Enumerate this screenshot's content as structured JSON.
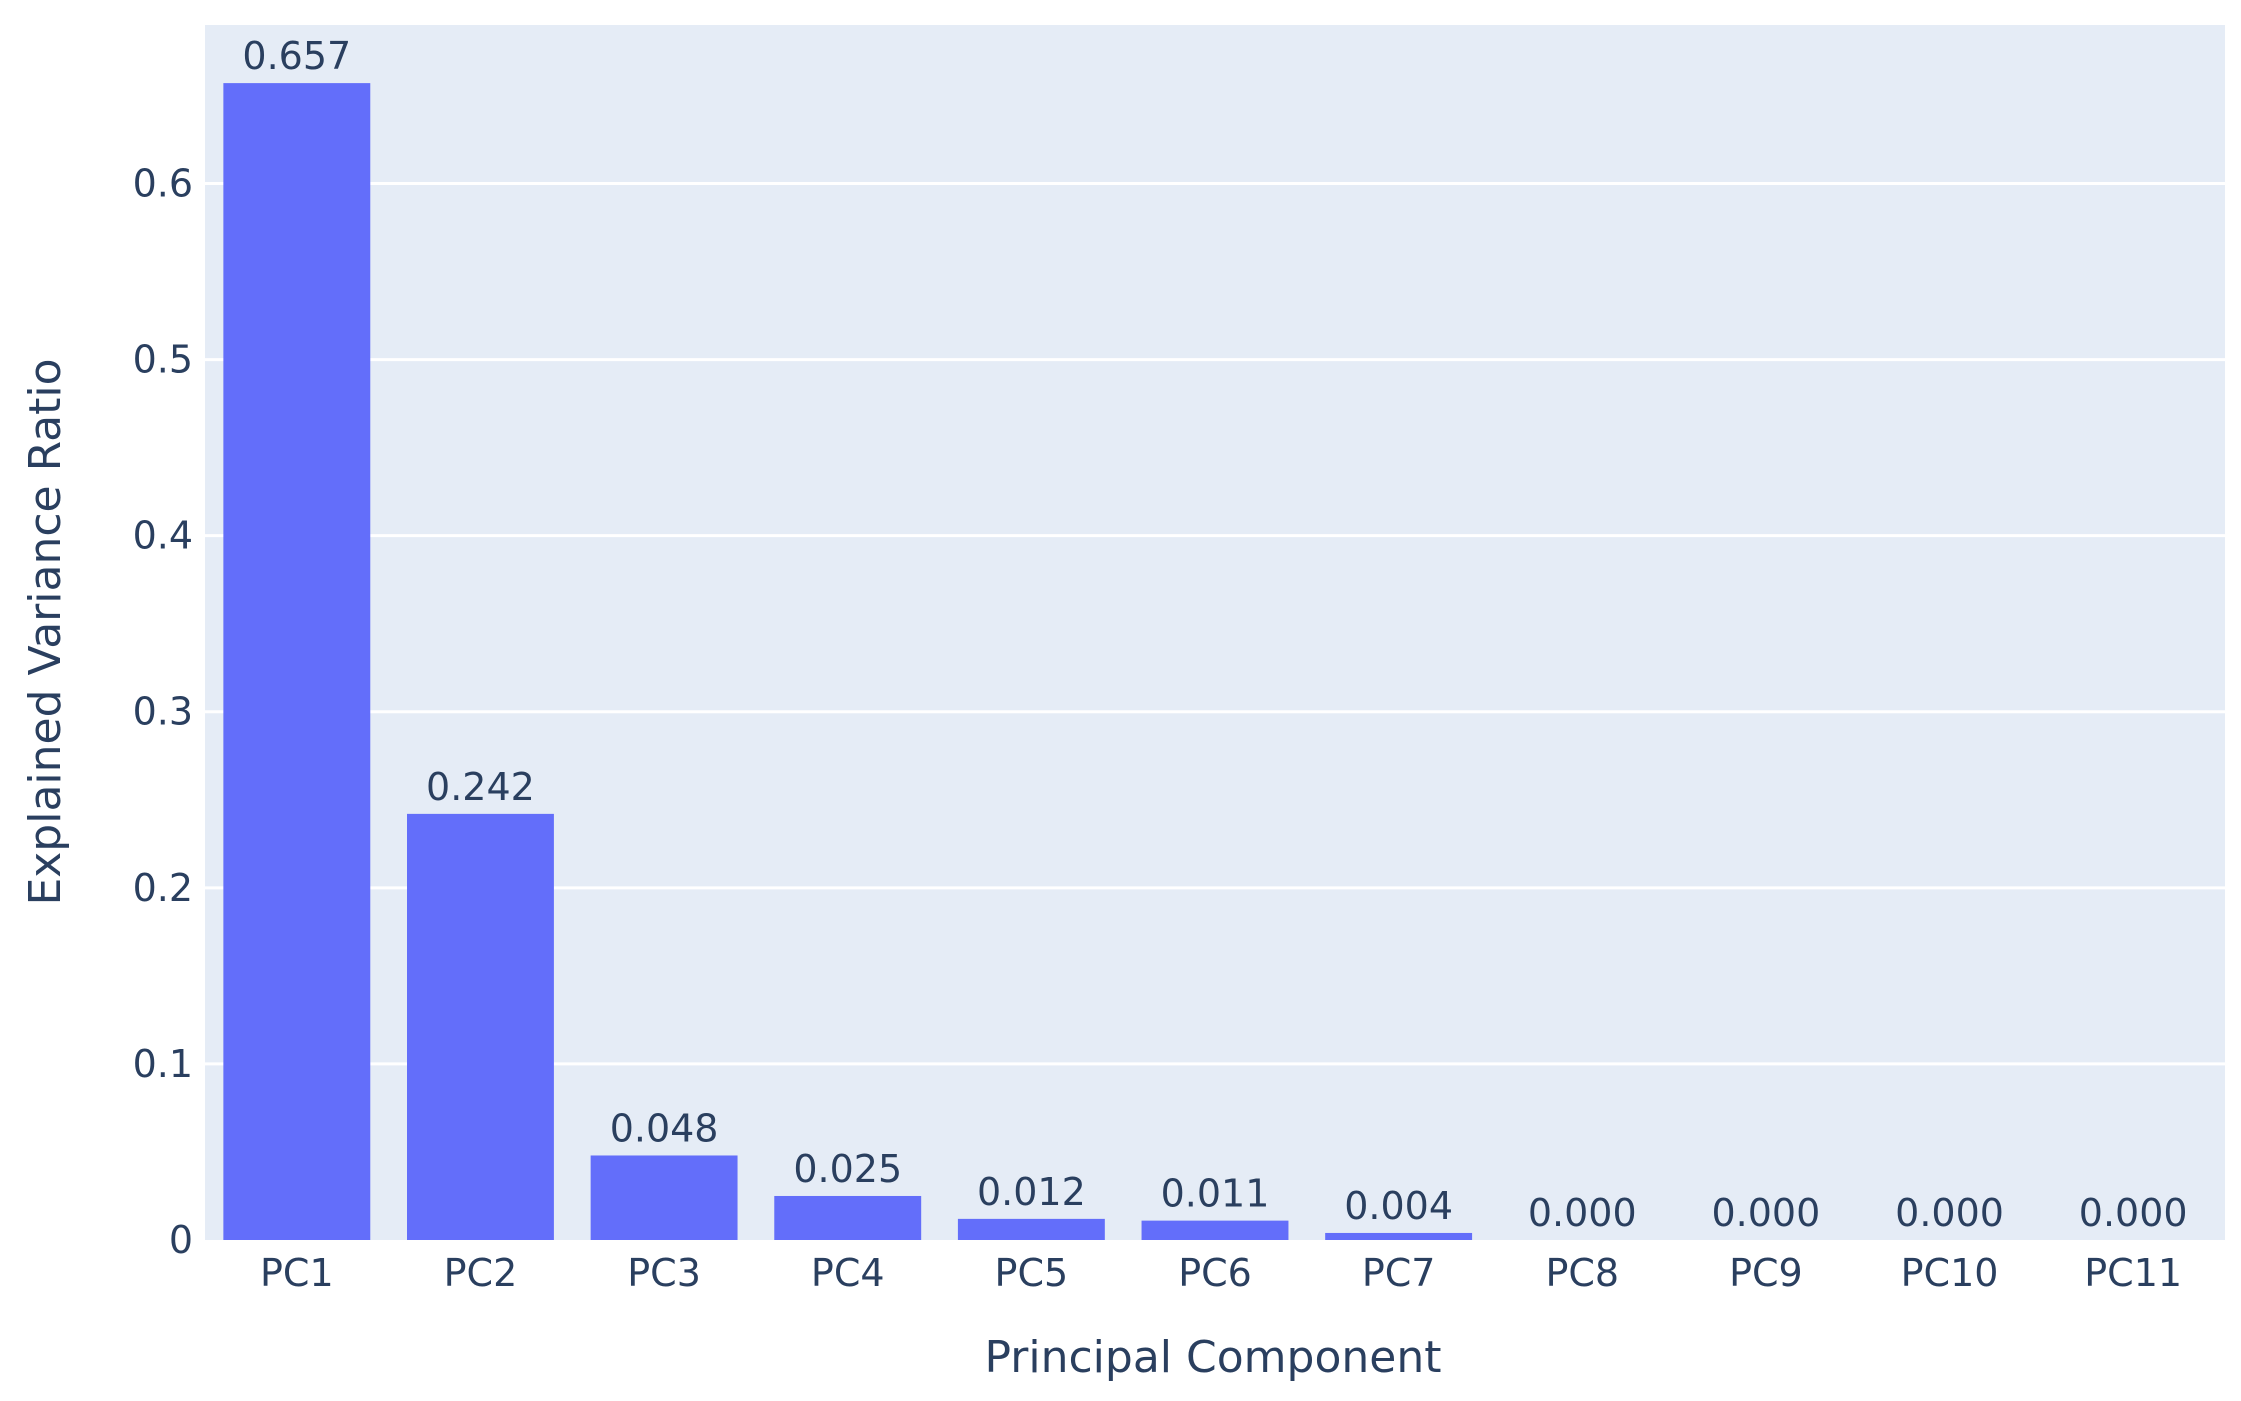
{
  "chart_data": {
    "type": "bar",
    "title": "",
    "xlabel": "Principal Component",
    "ylabel": "Explained Variance Ratio",
    "categories": [
      "PC1",
      "PC2",
      "PC3",
      "PC4",
      "PC5",
      "PC6",
      "PC7",
      "PC8",
      "PC9",
      "PC10",
      "PC11"
    ],
    "values": [
      0.657,
      0.242,
      0.048,
      0.025,
      0.012,
      0.011,
      0.004,
      0.0,
      0.0,
      0.0,
      0.0
    ],
    "value_labels": [
      "0.657",
      "0.242",
      "0.048",
      "0.025",
      "0.012",
      "0.011",
      "0.004",
      "0.000",
      "0.000",
      "0.000",
      "0.000"
    ],
    "yticks": [
      0,
      0.1,
      0.2,
      0.3,
      0.4,
      0.5,
      0.6
    ],
    "ytick_labels": [
      "0",
      "0.1",
      "0.2",
      "0.3",
      "0.4",
      "0.5",
      "0.6"
    ],
    "ylim": [
      0,
      0.69
    ],
    "grid": true,
    "legend": "none",
    "colors": {
      "bar": "#636efa",
      "plot_bg": "#e5ecf6",
      "grid": "#ffffff",
      "text": "#2a3f5f"
    }
  }
}
